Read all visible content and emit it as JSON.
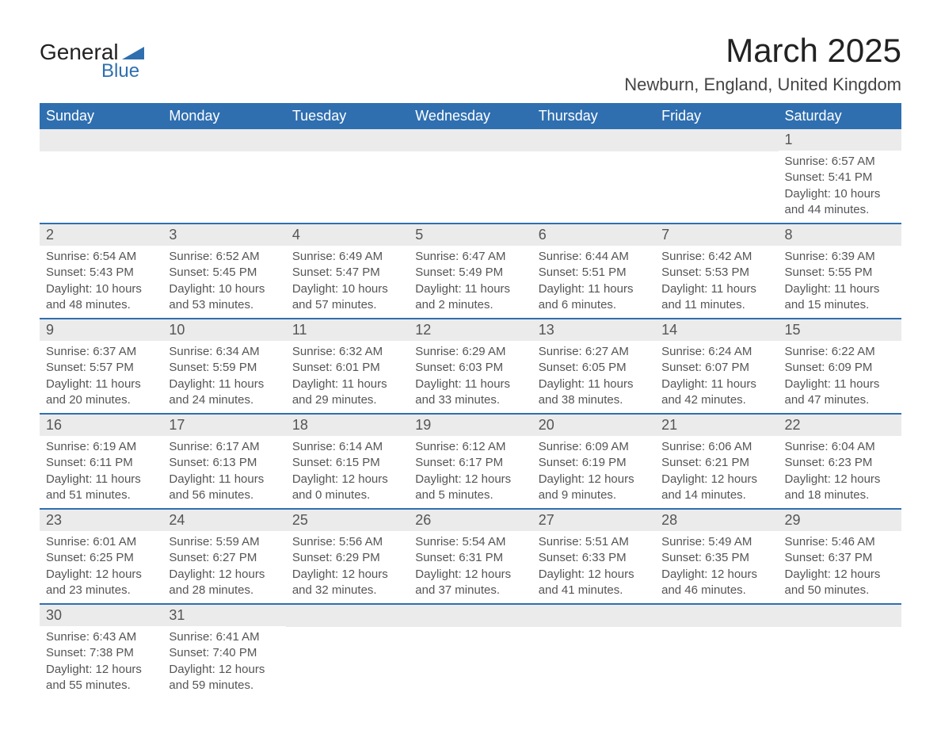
{
  "logo": {
    "text1": "General",
    "text2": "Blue"
  },
  "title": "March 2025",
  "location": "Newburn, England, United Kingdom",
  "colors": {
    "header_bg": "#2f6fb0",
    "header_text": "#ffffff",
    "daynum_bg": "#ebebeb",
    "row_border": "#2f6fb0",
    "body_text": "#555555"
  },
  "weekdays": [
    "Sunday",
    "Monday",
    "Tuesday",
    "Wednesday",
    "Thursday",
    "Friday",
    "Saturday"
  ],
  "weeks": [
    [
      null,
      null,
      null,
      null,
      null,
      null,
      {
        "n": "1",
        "sunrise": "6:57 AM",
        "sunset": "5:41 PM",
        "daylight": "10 hours and 44 minutes."
      }
    ],
    [
      {
        "n": "2",
        "sunrise": "6:54 AM",
        "sunset": "5:43 PM",
        "daylight": "10 hours and 48 minutes."
      },
      {
        "n": "3",
        "sunrise": "6:52 AM",
        "sunset": "5:45 PM",
        "daylight": "10 hours and 53 minutes."
      },
      {
        "n": "4",
        "sunrise": "6:49 AM",
        "sunset": "5:47 PM",
        "daylight": "10 hours and 57 minutes."
      },
      {
        "n": "5",
        "sunrise": "6:47 AM",
        "sunset": "5:49 PM",
        "daylight": "11 hours and 2 minutes."
      },
      {
        "n": "6",
        "sunrise": "6:44 AM",
        "sunset": "5:51 PM",
        "daylight": "11 hours and 6 minutes."
      },
      {
        "n": "7",
        "sunrise": "6:42 AM",
        "sunset": "5:53 PM",
        "daylight": "11 hours and 11 minutes."
      },
      {
        "n": "8",
        "sunrise": "6:39 AM",
        "sunset": "5:55 PM",
        "daylight": "11 hours and 15 minutes."
      }
    ],
    [
      {
        "n": "9",
        "sunrise": "6:37 AM",
        "sunset": "5:57 PM",
        "daylight": "11 hours and 20 minutes."
      },
      {
        "n": "10",
        "sunrise": "6:34 AM",
        "sunset": "5:59 PM",
        "daylight": "11 hours and 24 minutes."
      },
      {
        "n": "11",
        "sunrise": "6:32 AM",
        "sunset": "6:01 PM",
        "daylight": "11 hours and 29 minutes."
      },
      {
        "n": "12",
        "sunrise": "6:29 AM",
        "sunset": "6:03 PM",
        "daylight": "11 hours and 33 minutes."
      },
      {
        "n": "13",
        "sunrise": "6:27 AM",
        "sunset": "6:05 PM",
        "daylight": "11 hours and 38 minutes."
      },
      {
        "n": "14",
        "sunrise": "6:24 AM",
        "sunset": "6:07 PM",
        "daylight": "11 hours and 42 minutes."
      },
      {
        "n": "15",
        "sunrise": "6:22 AM",
        "sunset": "6:09 PM",
        "daylight": "11 hours and 47 minutes."
      }
    ],
    [
      {
        "n": "16",
        "sunrise": "6:19 AM",
        "sunset": "6:11 PM",
        "daylight": "11 hours and 51 minutes."
      },
      {
        "n": "17",
        "sunrise": "6:17 AM",
        "sunset": "6:13 PM",
        "daylight": "11 hours and 56 minutes."
      },
      {
        "n": "18",
        "sunrise": "6:14 AM",
        "sunset": "6:15 PM",
        "daylight": "12 hours and 0 minutes."
      },
      {
        "n": "19",
        "sunrise": "6:12 AM",
        "sunset": "6:17 PM",
        "daylight": "12 hours and 5 minutes."
      },
      {
        "n": "20",
        "sunrise": "6:09 AM",
        "sunset": "6:19 PM",
        "daylight": "12 hours and 9 minutes."
      },
      {
        "n": "21",
        "sunrise": "6:06 AM",
        "sunset": "6:21 PM",
        "daylight": "12 hours and 14 minutes."
      },
      {
        "n": "22",
        "sunrise": "6:04 AM",
        "sunset": "6:23 PM",
        "daylight": "12 hours and 18 minutes."
      }
    ],
    [
      {
        "n": "23",
        "sunrise": "6:01 AM",
        "sunset": "6:25 PM",
        "daylight": "12 hours and 23 minutes."
      },
      {
        "n": "24",
        "sunrise": "5:59 AM",
        "sunset": "6:27 PM",
        "daylight": "12 hours and 28 minutes."
      },
      {
        "n": "25",
        "sunrise": "5:56 AM",
        "sunset": "6:29 PM",
        "daylight": "12 hours and 32 minutes."
      },
      {
        "n": "26",
        "sunrise": "5:54 AM",
        "sunset": "6:31 PM",
        "daylight": "12 hours and 37 minutes."
      },
      {
        "n": "27",
        "sunrise": "5:51 AM",
        "sunset": "6:33 PM",
        "daylight": "12 hours and 41 minutes."
      },
      {
        "n": "28",
        "sunrise": "5:49 AM",
        "sunset": "6:35 PM",
        "daylight": "12 hours and 46 minutes."
      },
      {
        "n": "29",
        "sunrise": "5:46 AM",
        "sunset": "6:37 PM",
        "daylight": "12 hours and 50 minutes."
      }
    ],
    [
      {
        "n": "30",
        "sunrise": "6:43 AM",
        "sunset": "7:38 PM",
        "daylight": "12 hours and 55 minutes."
      },
      {
        "n": "31",
        "sunrise": "6:41 AM",
        "sunset": "7:40 PM",
        "daylight": "12 hours and 59 minutes."
      },
      null,
      null,
      null,
      null,
      null
    ]
  ],
  "labels": {
    "sunrise": "Sunrise: ",
    "sunset": "Sunset: ",
    "daylight": "Daylight: "
  }
}
